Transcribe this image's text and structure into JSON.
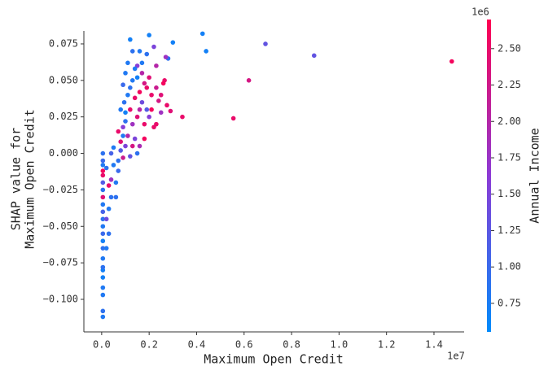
{
  "chart_data": {
    "type": "scatter",
    "xlabel": "Maximum Open Credit",
    "ylabel": [
      "SHAP value for",
      "Maximum Open Credit"
    ],
    "x_offset_label": "1e7",
    "colorbar_label": "Annual Income",
    "colorbar_offset_label": "1e6",
    "colormap": [
      "#008bfb",
      "#8c3bd6",
      "#ff0051"
    ],
    "xlim": [
      -0.075,
      1.527
    ],
    "ylim": [
      -0.1223,
      0.0839
    ],
    "clim": [
      0.554,
      2.7
    ],
    "xticks": [
      {
        "value": 0,
        "label": "0.0"
      },
      {
        "value": 0.2,
        "label": "0.2"
      },
      {
        "value": 0.4,
        "label": "0.4"
      },
      {
        "value": 0.6,
        "label": "0.6"
      },
      {
        "value": 0.8,
        "label": "0.8"
      },
      {
        "value": 1.0,
        "label": "1.0"
      },
      {
        "value": 1.2,
        "label": "1.2"
      },
      {
        "value": 1.4,
        "label": "1.4"
      }
    ],
    "yticks": [
      {
        "value": -0.1,
        "label": "−0.100"
      },
      {
        "value": -0.075,
        "label": "−0.075"
      },
      {
        "value": -0.05,
        "label": "−0.050"
      },
      {
        "value": -0.025,
        "label": "−0.025"
      },
      {
        "value": 0,
        "label": "0.000"
      },
      {
        "value": 0.025,
        "label": "0.025"
      },
      {
        "value": 0.05,
        "label": "0.050"
      },
      {
        "value": 0.075,
        "label": "0.075"
      }
    ],
    "cticks": [
      {
        "value": 0.75,
        "label": "0.75"
      },
      {
        "value": 1.0,
        "label": "1.00"
      },
      {
        "value": 1.25,
        "label": "1.25"
      },
      {
        "value": 1.5,
        "label": "1.50"
      },
      {
        "value": 1.75,
        "label": "1.75"
      },
      {
        "value": 2.0,
        "label": "2.00"
      },
      {
        "value": 2.25,
        "label": "2.25"
      },
      {
        "value": 2.5,
        "label": "2.50"
      }
    ],
    "x": [
      1.475,
      0.895,
      0.69,
      0.62,
      0.555,
      0.44,
      0.425,
      0.34,
      0.3,
      0.29,
      0.275,
      0.265,
      0.28,
      0.2,
      0.22,
      0.23,
      0.27,
      0.24,
      0.22,
      0.19,
      0.12,
      0.16,
      0.15,
      0.005,
      0.005,
      0.005,
      0.005,
      0.005,
      0.005,
      0.005,
      0.005,
      0.005,
      0.005,
      0.005,
      0.005,
      0.005,
      0.005,
      0.005,
      0.005,
      0.005,
      0.005,
      0.005,
      0.005,
      0.005,
      0.005,
      0.005,
      0.02,
      0.03,
      0.02,
      0.03,
      0.04,
      0.03,
      0.04,
      0.02,
      0.05,
      0.04,
      0.05,
      0.06,
      0.06,
      0.07,
      0.07,
      0.08,
      0.08,
      0.09,
      0.09,
      0.1,
      0.1,
      0.07,
      0.09,
      0.1,
      0.08,
      0.095,
      0.11,
      0.12,
      0.12,
      0.13,
      0.13,
      0.14,
      0.14,
      0.15,
      0.15,
      0.16,
      0.16,
      0.17,
      0.17,
      0.18,
      0.18,
      0.19,
      0.13,
      0.11,
      0.12,
      0.15,
      0.14,
      0.16,
      0.2,
      0.21,
      0.2,
      0.21,
      0.23,
      0.23,
      0.25,
      0.25,
      0.26,
      0.18,
      0.17,
      0.19,
      0.11,
      0.13,
      0.1,
      0.09
    ],
    "values": [
      0.063,
      0.067,
      0.075,
      0.05,
      0.024,
      0.07,
      0.082,
      0.025,
      0.076,
      0.029,
      0.033,
      0.05,
      0.065,
      0.081,
      0.073,
      0.06,
      0.066,
      0.036,
      0.018,
      0.045,
      0.078,
      0.07,
      0.06,
      -0.112,
      -0.108,
      -0.097,
      -0.092,
      -0.085,
      -0.08,
      -0.078,
      -0.072,
      -0.065,
      -0.06,
      -0.055,
      -0.05,
      -0.045,
      -0.04,
      -0.035,
      -0.03,
      -0.025,
      -0.02,
      -0.015,
      -0.012,
      -0.008,
      -0.005,
      0.0,
      -0.065,
      -0.055,
      -0.045,
      -0.038,
      -0.03,
      -0.022,
      -0.018,
      -0.01,
      -0.008,
      0.0,
      0.004,
      -0.03,
      -0.02,
      -0.012,
      -0.005,
      0.002,
      0.008,
      0.012,
      0.018,
      0.022,
      0.028,
      0.015,
      -0.003,
      0.005,
      0.03,
      0.035,
      0.04,
      0.045,
      0.03,
      0.05,
      0.02,
      0.038,
      0.01,
      0.052,
      0.025,
      0.042,
      0.005,
      0.035,
      0.062,
      0.02,
      0.048,
      0.03,
      0.005,
      0.012,
      -0.002,
      0.0,
      0.058,
      0.03,
      0.052,
      0.04,
      0.025,
      0.03,
      0.045,
      0.02,
      0.04,
      0.028,
      0.048,
      0.01,
      0.055,
      0.068,
      0.062,
      0.07,
      0.055,
      0.047
    ],
    "color_values": [
      2.6,
      1.3,
      1.3,
      2.3,
      2.5,
      0.7,
      0.7,
      2.5,
      0.7,
      2.4,
      2.5,
      2.5,
      0.9,
      0.7,
      1.5,
      2.0,
      1.8,
      2.3,
      2.5,
      2.5,
      0.7,
      0.8,
      1.6,
      0.8,
      0.9,
      0.8,
      0.8,
      0.7,
      0.7,
      0.9,
      0.8,
      0.9,
      0.7,
      1.0,
      0.8,
      0.9,
      1.1,
      0.8,
      2.4,
      0.9,
      1.2,
      2.5,
      2.6,
      0.8,
      1.0,
      0.9,
      0.8,
      0.9,
      1.4,
      0.8,
      0.9,
      2.5,
      1.8,
      0.9,
      0.8,
      1.1,
      0.8,
      0.9,
      0.8,
      1.0,
      0.9,
      1.2,
      2.4,
      0.8,
      1.6,
      0.9,
      0.7,
      2.5,
      2.2,
      1.5,
      0.8,
      0.9,
      0.8,
      0.9,
      2.5,
      0.8,
      1.8,
      2.5,
      1.5,
      0.7,
      2.4,
      2.6,
      1.9,
      1.4,
      0.8,
      2.5,
      2.3,
      1.2,
      2.3,
      2.0,
      1.3,
      0.9,
      0.8,
      2.0,
      2.4,
      2.5,
      1.6,
      2.6,
      2.2,
      2.5,
      2.4,
      1.8,
      2.6,
      2.6,
      2.0,
      0.9,
      0.8,
      0.9,
      0.8,
      1.0
    ]
  }
}
